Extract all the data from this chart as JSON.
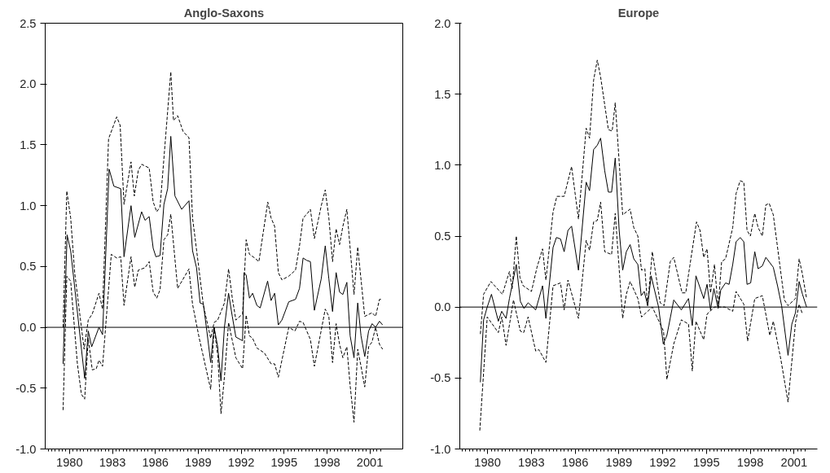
{
  "chart_data": [
    {
      "type": "line",
      "title": "Anglo-Saxons",
      "xlim": [
        1978.3,
        2003.3
      ],
      "ylim": [
        -1.0,
        2.5
      ],
      "xticks": [
        1980,
        1983,
        1986,
        1989,
        1992,
        1995,
        1998,
        2001
      ],
      "yticks": [
        {
          "value": -1.0,
          "label": "-1.0"
        },
        {
          "value": -0.5,
          "label": "-0.5"
        },
        {
          "value": 0,
          "label": "0.0"
        },
        {
          "value": 0.5,
          "label": "0.5"
        },
        {
          "value": 1.0,
          "label": "1.0"
        },
        {
          "value": 1.5,
          "label": "1.5"
        },
        {
          "value": 2.0,
          "label": "2.0"
        },
        {
          "value": 2.5,
          "label": "2.5"
        }
      ],
      "grid": false,
      "ref_lines": [
        {
          "axis": "y",
          "value": 0,
          "color": "#000000",
          "line_style": "solid"
        }
      ],
      "series": [
        {
          "color": "#000000",
          "line_style": "dashed",
          "x": [
            1979.55,
            1979.81,
            1980.08,
            1980.36,
            1981.02,
            1981.31,
            1981.59,
            1982.06,
            1982.31,
            1982.73,
            1983.3,
            1983.54,
            1983.81,
            1984.3,
            1984.53,
            1984.81,
            1985.04,
            1985.57,
            1985.85,
            1986.1,
            1986.33,
            1987.08,
            1987.27,
            1987.56,
            1987.94,
            1988.35,
            1988.6,
            1989.07,
            1989.36,
            1989.87,
            1990.11,
            1990.36,
            1990.83,
            1991.12,
            1991.38,
            1991.63,
            1992.1,
            1992.35,
            1992.58,
            1992.95,
            1993.24,
            1993.86,
            1994.09,
            1994.34,
            1994.6,
            1994.85,
            1995.32,
            1995.8,
            1996.08,
            1996.33,
            1996.59,
            1996.84,
            1997.12,
            1997.6,
            1997.88,
            1998.13,
            1998.39,
            1998.64,
            1998.88,
            1999.11,
            1999.39,
            1999.62,
            1999.89,
            2000.15,
            2000.64,
            2001.15,
            2001.4,
            2001.67,
            2001.82
          ],
          "values": [
            0.0,
            1.12,
            0.9,
            0.45,
            -0.18,
            0.06,
            0.11,
            0.28,
            0.15,
            1.55,
            1.73,
            1.66,
            1.01,
            1.36,
            1.08,
            1.29,
            1.34,
            1.31,
            1.03,
            0.95,
            0.99,
            2.1,
            1.7,
            1.74,
            1.61,
            1.56,
            0.9,
            0.46,
            0.18,
            -0.09,
            0.04,
            0.06,
            0.2,
            0.48,
            0.24,
            0.06,
            0.11,
            0.72,
            0.6,
            0.57,
            0.54,
            1.03,
            0.9,
            0.83,
            0.45,
            0.39,
            0.42,
            0.47,
            0.67,
            0.9,
            0.93,
            0.97,
            0.73,
            1.0,
            1.13,
            0.9,
            0.54,
            0.81,
            0.68,
            0.83,
            0.97,
            0.65,
            0.27,
            0.66,
            0.09,
            0.12,
            0.09,
            0.23,
            0.23
          ]
        },
        {
          "color": "#000000",
          "line_style": "solid",
          "x": [
            1979.55,
            1979.83,
            1980.08,
            1981.06,
            1981.31,
            1981.55,
            1982.06,
            1982.31,
            1982.77,
            1983.1,
            1983.58,
            1983.81,
            1984.3,
            1984.56,
            1985.04,
            1985.28,
            1985.57,
            1985.85,
            1986.04,
            1986.33,
            1986.6,
            1986.86,
            1987.08,
            1987.37,
            1987.84,
            1988.35,
            1988.6,
            1988.88,
            1989.13,
            1989.36,
            1989.6,
            1989.87,
            1990.11,
            1990.36,
            1990.59,
            1990.83,
            1991.12,
            1991.38,
            1991.63,
            1992.1,
            1992.2,
            1992.35,
            1992.58,
            1992.8,
            1993.1,
            1993.33,
            1993.85,
            1994.09,
            1994.34,
            1994.6,
            1994.85,
            1995.33,
            1995.8,
            1996.08,
            1996.33,
            1996.59,
            1996.84,
            1997.12,
            1997.6,
            1997.88,
            1998.13,
            1998.39,
            1998.64,
            1998.88,
            1999.11,
            1999.39,
            1999.62,
            1999.89,
            2000.15,
            2000.38,
            2000.64,
            2000.91,
            2001.16,
            2001.4,
            2001.67,
            2001.89
          ],
          "values": [
            -0.3,
            0.76,
            0.63,
            -0.42,
            -0.03,
            -0.16,
            0.0,
            -0.06,
            1.3,
            1.16,
            1.14,
            0.58,
            1.0,
            0.74,
            0.95,
            0.88,
            0.91,
            0.65,
            0.58,
            0.59,
            1.01,
            1.14,
            1.57,
            1.08,
            0.97,
            1.04,
            0.63,
            0.49,
            0.2,
            0.19,
            -0.03,
            -0.29,
            0.0,
            -0.16,
            -0.44,
            0.0,
            0.28,
            0.09,
            -0.08,
            -0.11,
            0.45,
            0.43,
            0.24,
            0.28,
            0.18,
            0.16,
            0.38,
            0.22,
            0.28,
            0.02,
            0.06,
            0.21,
            0.23,
            0.32,
            0.57,
            0.55,
            0.54,
            0.14,
            0.4,
            0.67,
            0.4,
            0.13,
            0.45,
            0.29,
            0.27,
            0.37,
            -0.07,
            -0.25,
            0.2,
            -0.07,
            -0.24,
            -0.03,
            0.03,
            0.0,
            0.05,
            0.02
          ]
        },
        {
          "color": "#000000",
          "line_style": "dashed",
          "x": [
            1979.55,
            1979.81,
            1980.08,
            1980.55,
            1980.83,
            1981.06,
            1981.31,
            1981.59,
            1981.87,
            1982.06,
            1982.31,
            1982.92,
            1983.3,
            1983.58,
            1983.81,
            1984.3,
            1984.56,
            1984.81,
            1985.28,
            1985.57,
            1985.85,
            1986.1,
            1986.33,
            1986.6,
            1986.86,
            1987.08,
            1987.56,
            1988.35,
            1988.6,
            1989.07,
            1989.87,
            1990.11,
            1990.36,
            1990.59,
            1990.83,
            1991.12,
            1991.63,
            1992.1,
            1992.35,
            1992.58,
            1992.8,
            1993.1,
            1993.62,
            1994.09,
            1994.34,
            1994.6,
            1995.33,
            1995.76,
            1996.08,
            1996.33,
            1996.84,
            1997.12,
            1997.88,
            1998.13,
            1998.39,
            1998.64,
            1998.88,
            1999.11,
            1999.39,
            1999.62,
            1999.89,
            2000.15,
            2000.38,
            2000.64,
            2000.91,
            2001.15,
            2001.4,
            2001.67,
            2001.89
          ],
          "values": [
            -0.68,
            0.42,
            0.38,
            -0.3,
            -0.55,
            -0.59,
            -0.09,
            -0.35,
            -0.34,
            -0.27,
            -0.32,
            0.6,
            0.57,
            0.58,
            0.18,
            0.58,
            0.33,
            0.47,
            0.49,
            0.54,
            0.29,
            0.24,
            0.31,
            0.72,
            0.76,
            0.93,
            0.32,
            0.48,
            0.19,
            -0.09,
            -0.51,
            0.0,
            -0.23,
            -0.71,
            -0.41,
            0.04,
            -0.25,
            -0.34,
            0.1,
            -0.07,
            -0.09,
            -0.17,
            -0.21,
            -0.3,
            -0.3,
            -0.41,
            0.0,
            -0.03,
            0.05,
            0.04,
            -0.1,
            -0.32,
            0.15,
            0.09,
            -0.29,
            0.03,
            -0.14,
            -0.25,
            -0.16,
            -0.48,
            -0.78,
            -0.18,
            -0.32,
            -0.49,
            -0.16,
            -0.12,
            0.0,
            -0.14,
            -0.18
          ]
        }
      ]
    },
    {
      "type": "line",
      "title": "Europe",
      "xlim": [
        1978.1,
        2002.6
      ],
      "ylim": [
        -1.0,
        2.0
      ],
      "xticks": [
        1980,
        1983,
        1986,
        1989,
        1992,
        1995,
        1998,
        2001
      ],
      "yticks": [
        {
          "value": -1.0,
          "label": "-1.0"
        },
        {
          "value": -0.5,
          "label": "-0.5"
        },
        {
          "value": 0,
          "label": "0.0"
        },
        {
          "value": 0.5,
          "label": "0.5"
        },
        {
          "value": 1.0,
          "label": "1.0"
        },
        {
          "value": 1.5,
          "label": "1.5"
        },
        {
          "value": 2.0,
          "label": "2.0"
        }
      ],
      "grid": false,
      "ref_lines": [
        {
          "axis": "y",
          "value": 0,
          "color": "#000000",
          "line_style": "solid"
        }
      ],
      "series": [
        {
          "color": "#000000",
          "line_style": "dashed",
          "x": [
            1979.51,
            1979.73,
            1980.23,
            1981.02,
            1981.5,
            1981.69,
            1981.97,
            1982.22,
            1982.44,
            1983.01,
            1983.39,
            1983.77,
            1984.0,
            1984.49,
            1984.75,
            1985.25,
            1985.76,
            1986.23,
            1986.76,
            1986.99,
            1987.27,
            1987.52,
            1987.75,
            1988.28,
            1988.54,
            1988.75,
            1989.26,
            1989.77,
            1990.02,
            1990.3,
            1990.55,
            1990.78,
            1990.97,
            1991.29,
            1991.83,
            1992.1,
            1992.52,
            1992.76,
            1993.33,
            1993.58,
            1993.86,
            1994.32,
            1994.56,
            1994.81,
            1995.04,
            1995.28,
            1995.55,
            1995.8,
            1996.04,
            1996.31,
            1996.8,
            1997.03,
            1997.31,
            1997.56,
            1997.78,
            1998.01,
            1998.31,
            1998.54,
            1998.83,
            1999.07,
            1999.3,
            1999.58,
            2000.34,
            2000.59,
            2001.1,
            2001.35,
            2001.58,
            2001.86
          ],
          "values": [
            -0.19,
            0.09,
            0.18,
            0.09,
            0.25,
            0.13,
            0.5,
            0.21,
            0.15,
            0.11,
            0.28,
            0.41,
            0.19,
            0.67,
            0.78,
            0.78,
            0.99,
            0.62,
            1.26,
            1.19,
            1.6,
            1.74,
            1.62,
            1.25,
            1.24,
            1.44,
            0.65,
            0.69,
            0.56,
            0.5,
            0.26,
            0.27,
            0.01,
            0.39,
            0.03,
            0.01,
            0.32,
            0.35,
            0.1,
            0.1,
            0.29,
            0.6,
            0.54,
            0.35,
            0.41,
            0.1,
            0.3,
            0.0,
            0.32,
            0.34,
            0.56,
            0.8,
            0.89,
            0.88,
            0.54,
            0.5,
            0.66,
            0.56,
            0.5,
            0.72,
            0.73,
            0.65,
            0.05,
            0.01,
            0.06,
            0.34,
            0.23,
            0.06
          ]
        },
        {
          "color": "#000000",
          "line_style": "solid",
          "x": [
            1979.51,
            1979.73,
            1979.98,
            1980.27,
            1980.74,
            1980.97,
            1981.27,
            1981.5,
            1981.97,
            1982.25,
            1982.5,
            1982.78,
            1983.3,
            1983.77,
            1984.0,
            1984.49,
            1984.72,
            1985.0,
            1985.25,
            1985.51,
            1985.76,
            1986.23,
            1986.76,
            1986.99,
            1987.27,
            1987.52,
            1987.75,
            1988.03,
            1988.28,
            1988.5,
            1988.75,
            1989.02,
            1989.26,
            1989.51,
            1989.77,
            1990.02,
            1990.3,
            1990.53,
            1990.74,
            1990.97,
            1991.21,
            1991.72,
            1992.04,
            1992.29,
            1992.76,
            1993.28,
            1993.77,
            1994.03,
            1994.28,
            1994.81,
            1995.04,
            1995.28,
            1995.51,
            1995.8,
            1995.98,
            1996.31,
            1996.55,
            1996.8,
            1997.03,
            1997.31,
            1997.56,
            1997.78,
            1998.03,
            1998.31,
            1998.54,
            1998.83,
            1999.07,
            1999.58,
            1999.87,
            2000.15,
            2000.59,
            2000.85,
            2001.1,
            2001.35,
            2001.58,
            2001.86
          ],
          "values": [
            -0.53,
            -0.09,
            0.0,
            0.09,
            -0.1,
            -0.03,
            -0.08,
            0.06,
            0.3,
            0.04,
            -0.01,
            0.03,
            -0.02,
            0.15,
            -0.08,
            0.42,
            0.49,
            0.48,
            0.39,
            0.54,
            0.57,
            0.26,
            0.88,
            0.82,
            1.11,
            1.14,
            1.19,
            0.96,
            0.81,
            0.81,
            1.05,
            0.54,
            0.26,
            0.39,
            0.44,
            0.34,
            0.3,
            0.08,
            0.11,
            0.01,
            0.22,
            0.0,
            -0.26,
            -0.2,
            0.05,
            -0.02,
            0.06,
            -0.13,
            0.22,
            0.06,
            0.16,
            -0.02,
            0.13,
            -0.01,
            0.12,
            0.17,
            0.16,
            0.3,
            0.46,
            0.49,
            0.46,
            0.16,
            0.17,
            0.39,
            0.27,
            0.29,
            0.35,
            0.28,
            0.15,
            0.01,
            -0.34,
            -0.12,
            -0.04,
            0.18,
            0.09,
            0.0
          ]
        },
        {
          "color": "#000000",
          "line_style": "dashed",
          "x": [
            1979.47,
            1979.98,
            1980.74,
            1980.98,
            1981.27,
            1981.78,
            1982.25,
            1982.48,
            1982.78,
            1983.3,
            1983.52,
            1984.0,
            1984.49,
            1985.0,
            1985.25,
            1985.51,
            1986.23,
            1986.76,
            1986.99,
            1987.27,
            1987.52,
            1987.75,
            1988.03,
            1988.5,
            1988.75,
            1989.26,
            1989.51,
            1989.77,
            1990.3,
            1990.55,
            1991.29,
            1992.06,
            1992.29,
            1992.76,
            1993.28,
            1993.77,
            1994.03,
            1994.28,
            1994.81,
            1995.04,
            1995.55,
            1996.27,
            1996.8,
            1997.03,
            1997.56,
            1997.82,
            1998.31,
            1998.83,
            1999.34,
            1999.58,
            2000.1,
            2000.59,
            2001.1,
            2001.35,
            2001.58
          ],
          "values": [
            -0.87,
            -0.07,
            -0.18,
            -0.07,
            -0.27,
            0.05,
            -0.17,
            -0.18,
            -0.07,
            -0.31,
            -0.3,
            -0.39,
            0.15,
            0.17,
            -0.02,
            0.19,
            -0.08,
            0.47,
            0.4,
            0.6,
            0.61,
            0.74,
            0.39,
            0.37,
            0.66,
            -0.08,
            0.09,
            0.18,
            0.06,
            -0.07,
            0.0,
            -0.17,
            -0.51,
            -0.26,
            -0.09,
            -0.12,
            -0.45,
            -0.1,
            -0.23,
            -0.05,
            0.0,
            0.0,
            -0.03,
            0.11,
            0.02,
            -0.24,
            0.06,
            0.08,
            -0.2,
            -0.1,
            -0.37,
            -0.67,
            -0.11,
            0.02,
            -0.05
          ]
        }
      ]
    }
  ]
}
